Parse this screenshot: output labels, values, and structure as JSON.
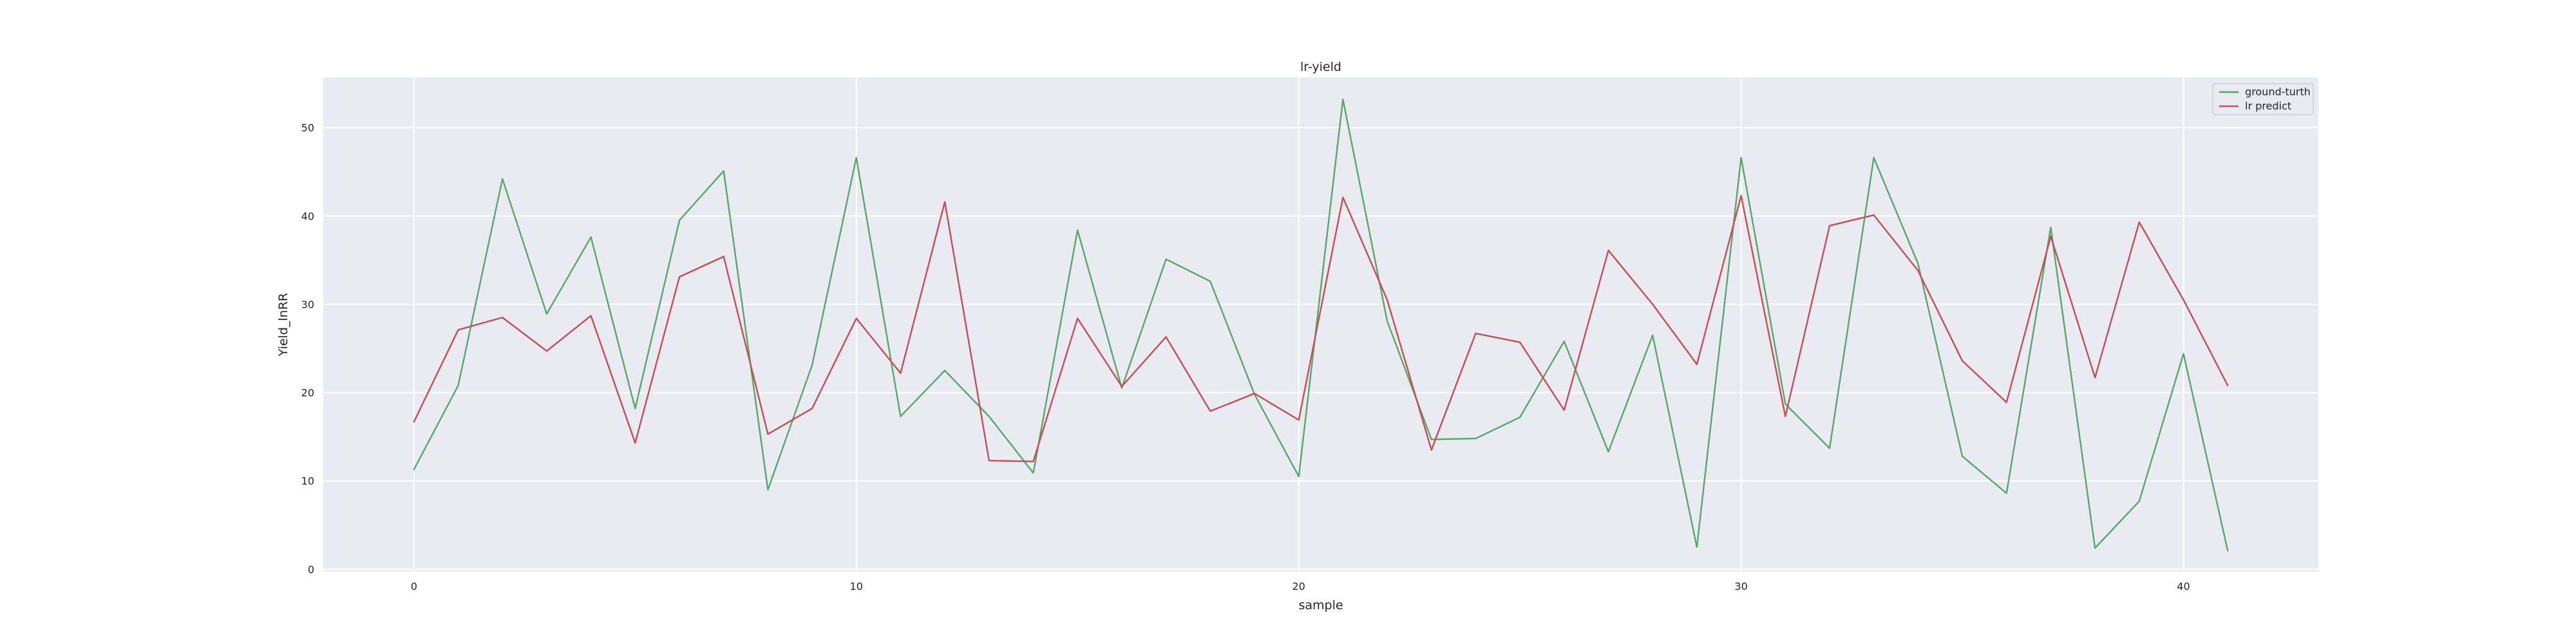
{
  "chart_data": {
    "type": "line",
    "title": "lr-yield",
    "xlabel": "sample",
    "ylabel": "Yield_lnRR",
    "xlim": [
      -2.05,
      43.05
    ],
    "ylim": [
      -0.3,
      55.7
    ],
    "xticks": [
      0,
      10,
      20,
      30,
      40
    ],
    "yticks": [
      0,
      10,
      20,
      30,
      40,
      50
    ],
    "grid": true,
    "legend_position": "top-right",
    "x": [
      0,
      1,
      2,
      3,
      4,
      5,
      6,
      7,
      8,
      9,
      10,
      11,
      12,
      13,
      14,
      15,
      16,
      17,
      18,
      19,
      20,
      21,
      22,
      23,
      24,
      25,
      26,
      27,
      28,
      29,
      30,
      31,
      32,
      33,
      34,
      35,
      36,
      37,
      38,
      39,
      40,
      41
    ],
    "series": [
      {
        "name": "ground-turth",
        "color": "#55a868",
        "values": [
          11.3,
          20.8,
          44.2,
          28.9,
          37.6,
          18.2,
          39.5,
          45.1,
          9.0,
          23.1,
          46.6,
          17.3,
          22.5,
          17.3,
          10.9,
          38.4,
          20.5,
          35.1,
          32.6,
          19.8,
          10.5,
          53.2,
          28.1,
          14.7,
          14.8,
          17.2,
          25.8,
          13.3,
          26.5,
          2.5,
          46.6,
          18.7,
          13.7,
          46.6,
          34.6,
          12.8,
          8.6,
          38.7,
          2.4,
          7.7,
          24.4,
          2.1
        ]
      },
      {
        "name": "lr predict",
        "color": "#c44e52",
        "values": [
          16.7,
          27.1,
          28.5,
          24.7,
          28.7,
          14.3,
          33.1,
          35.4,
          15.3,
          18.2,
          28.4,
          22.2,
          41.6,
          12.3,
          12.2,
          28.4,
          20.7,
          26.3,
          17.9,
          19.9,
          16.9,
          42.1,
          30.5,
          13.5,
          26.7,
          25.7,
          18.0,
          36.1,
          30.0,
          23.2,
          42.3,
          17.3,
          38.9,
          40.1,
          33.8,
          23.6,
          18.9,
          37.7,
          21.7,
          39.3,
          30.5,
          20.8
        ]
      }
    ]
  }
}
